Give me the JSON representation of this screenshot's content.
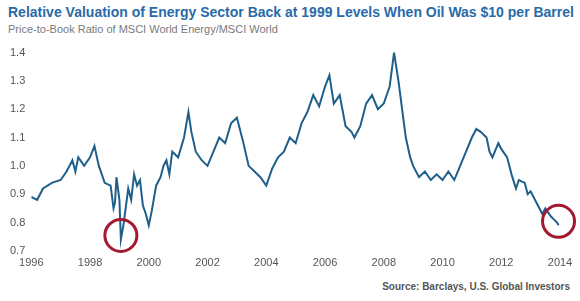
{
  "chart_data": {
    "type": "line",
    "title": "Relative Valuation of Energy Sector Back at 1999 Levels When Oil Was $10 per Barrel",
    "subtitle": "Price-to-Book Ratio of MSCI World Energy/MSCI World",
    "source": "Source: Barclays, U.S. Global Investors",
    "color": "#1f5f8b",
    "grid": false,
    "xlim": [
      1996,
      2014
    ],
    "xticks": [
      1996,
      1998,
      2000,
      2002,
      2004,
      2006,
      2008,
      2010,
      2012,
      2014
    ],
    "ylim": [
      0.7,
      1.4
    ],
    "yticks": [
      0.7,
      0.8,
      0.9,
      {
        "value": 1,
        "label": "1.0"
      },
      1.1,
      1.2,
      1.3,
      1.4
    ],
    "x": [
      1996.0,
      1996.2,
      1996.4,
      1996.7,
      1997.0,
      1997.2,
      1997.4,
      1997.5,
      1997.6,
      1997.8,
      1998.0,
      1998.15,
      1998.3,
      1998.5,
      1998.7,
      1998.8,
      1998.85,
      1998.9,
      1999.0,
      1999.05,
      1999.15,
      1999.3,
      1999.4,
      1999.5,
      1999.6,
      1999.7,
      1999.8,
      1999.9,
      2000.0,
      2000.1,
      2000.25,
      2000.4,
      2000.5,
      2000.6,
      2000.7,
      2000.8,
      2001.0,
      2001.2,
      2001.35,
      2001.45,
      2001.6,
      2001.8,
      2002.0,
      2002.2,
      2002.4,
      2002.6,
      2002.8,
      2003.0,
      2003.2,
      2003.4,
      2003.6,
      2003.8,
      2004.0,
      2004.2,
      2004.4,
      2004.6,
      2004.8,
      2005.0,
      2005.2,
      2005.4,
      2005.6,
      2005.8,
      2006.0,
      2006.15,
      2006.3,
      2006.5,
      2006.7,
      2006.9,
      2007.0,
      2007.2,
      2007.4,
      2007.6,
      2007.8,
      2008.0,
      2008.2,
      2008.35,
      2008.5,
      2008.6,
      2008.75,
      2008.9,
      2009.0,
      2009.2,
      2009.4,
      2009.6,
      2009.8,
      2010.0,
      2010.2,
      2010.4,
      2010.6,
      2010.8,
      2011.0,
      2011.15,
      2011.3,
      2011.5,
      2011.6,
      2011.7,
      2011.9,
      2012.0,
      2012.2,
      2012.35,
      2012.5,
      2012.6,
      2012.8,
      2012.9,
      2013.0,
      2013.2,
      2013.4,
      2013.5,
      2013.7,
      2013.8,
      2013.9,
      2013.95
    ],
    "values": [
      0.89,
      0.88,
      0.92,
      0.94,
      0.95,
      0.98,
      1.02,
      0.98,
      1.03,
      1.0,
      1.03,
      1.07,
      1.0,
      0.94,
      0.93,
      0.85,
      0.87,
      0.96,
      0.88,
      0.74,
      0.8,
      0.92,
      0.88,
      0.97,
      0.93,
      0.95,
      0.86,
      0.83,
      0.79,
      0.84,
      0.93,
      0.96,
      1.0,
      1.02,
      0.97,
      1.05,
      1.03,
      1.1,
      1.19,
      1.12,
      1.05,
      1.02,
      1.0,
      1.05,
      1.1,
      1.08,
      1.15,
      1.17,
      1.09,
      1.0,
      0.98,
      0.96,
      0.93,
      0.99,
      1.03,
      1.05,
      1.1,
      1.08,
      1.15,
      1.19,
      1.25,
      1.21,
      1.28,
      1.32,
      1.22,
      1.25,
      1.14,
      1.12,
      1.1,
      1.14,
      1.22,
      1.25,
      1.2,
      1.22,
      1.28,
      1.4,
      1.3,
      1.22,
      1.1,
      1.03,
      1.0,
      0.96,
      0.98,
      0.95,
      0.97,
      0.95,
      0.98,
      0.95,
      1.0,
      1.05,
      1.1,
      1.13,
      1.12,
      1.1,
      1.05,
      1.03,
      1.08,
      1.06,
      1.03,
      0.97,
      0.92,
      0.95,
      0.94,
      0.9,
      0.91,
      0.87,
      0.83,
      0.85,
      0.82,
      0.81,
      0.8,
      0.79
    ]
  }
}
